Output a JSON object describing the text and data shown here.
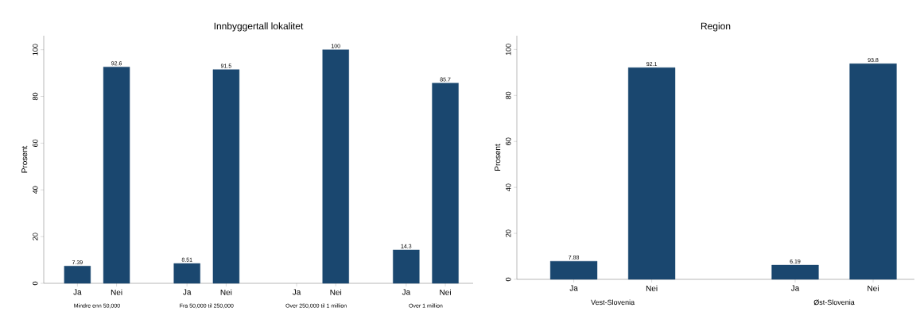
{
  "chart_data": [
    {
      "type": "bar",
      "title": "Innbyggertall lokalitet",
      "ylabel": "Prosent",
      "categories": [
        "Ja",
        "Nei",
        "Ja",
        "Nei",
        "Ja",
        "Nei",
        "Ja",
        "Nei"
      ],
      "values": [
        7.39,
        92.6,
        8.51,
        91.5,
        null,
        100,
        14.3,
        85.7
      ],
      "color": "#1a476f",
      "ylim": [
        0,
        106
      ],
      "yticks": [
        0,
        20,
        40,
        60,
        80,
        100
      ],
      "data_labels": true,
      "annotations": [
        "Mindre enn 50,000",
        "Fra 50,000 til 250,000",
        "Over 250,000 til 1 million",
        "Over 1 million"
      ]
    },
    {
      "type": "bar",
      "title": "Region",
      "ylabel": "Prosent",
      "categories": [
        "Ja",
        "Nei",
        "Ja",
        "Nei"
      ],
      "values": [
        7.88,
        92.1,
        6.19,
        93.8
      ],
      "color": "#1a476f",
      "ylim": [
        0,
        106
      ],
      "yticks": [
        0,
        20,
        40,
        60,
        80,
        100
      ],
      "data_labels": true,
      "annotations": [
        "Vest-Slovenia",
        "Øst-Slovenia"
      ]
    }
  ]
}
